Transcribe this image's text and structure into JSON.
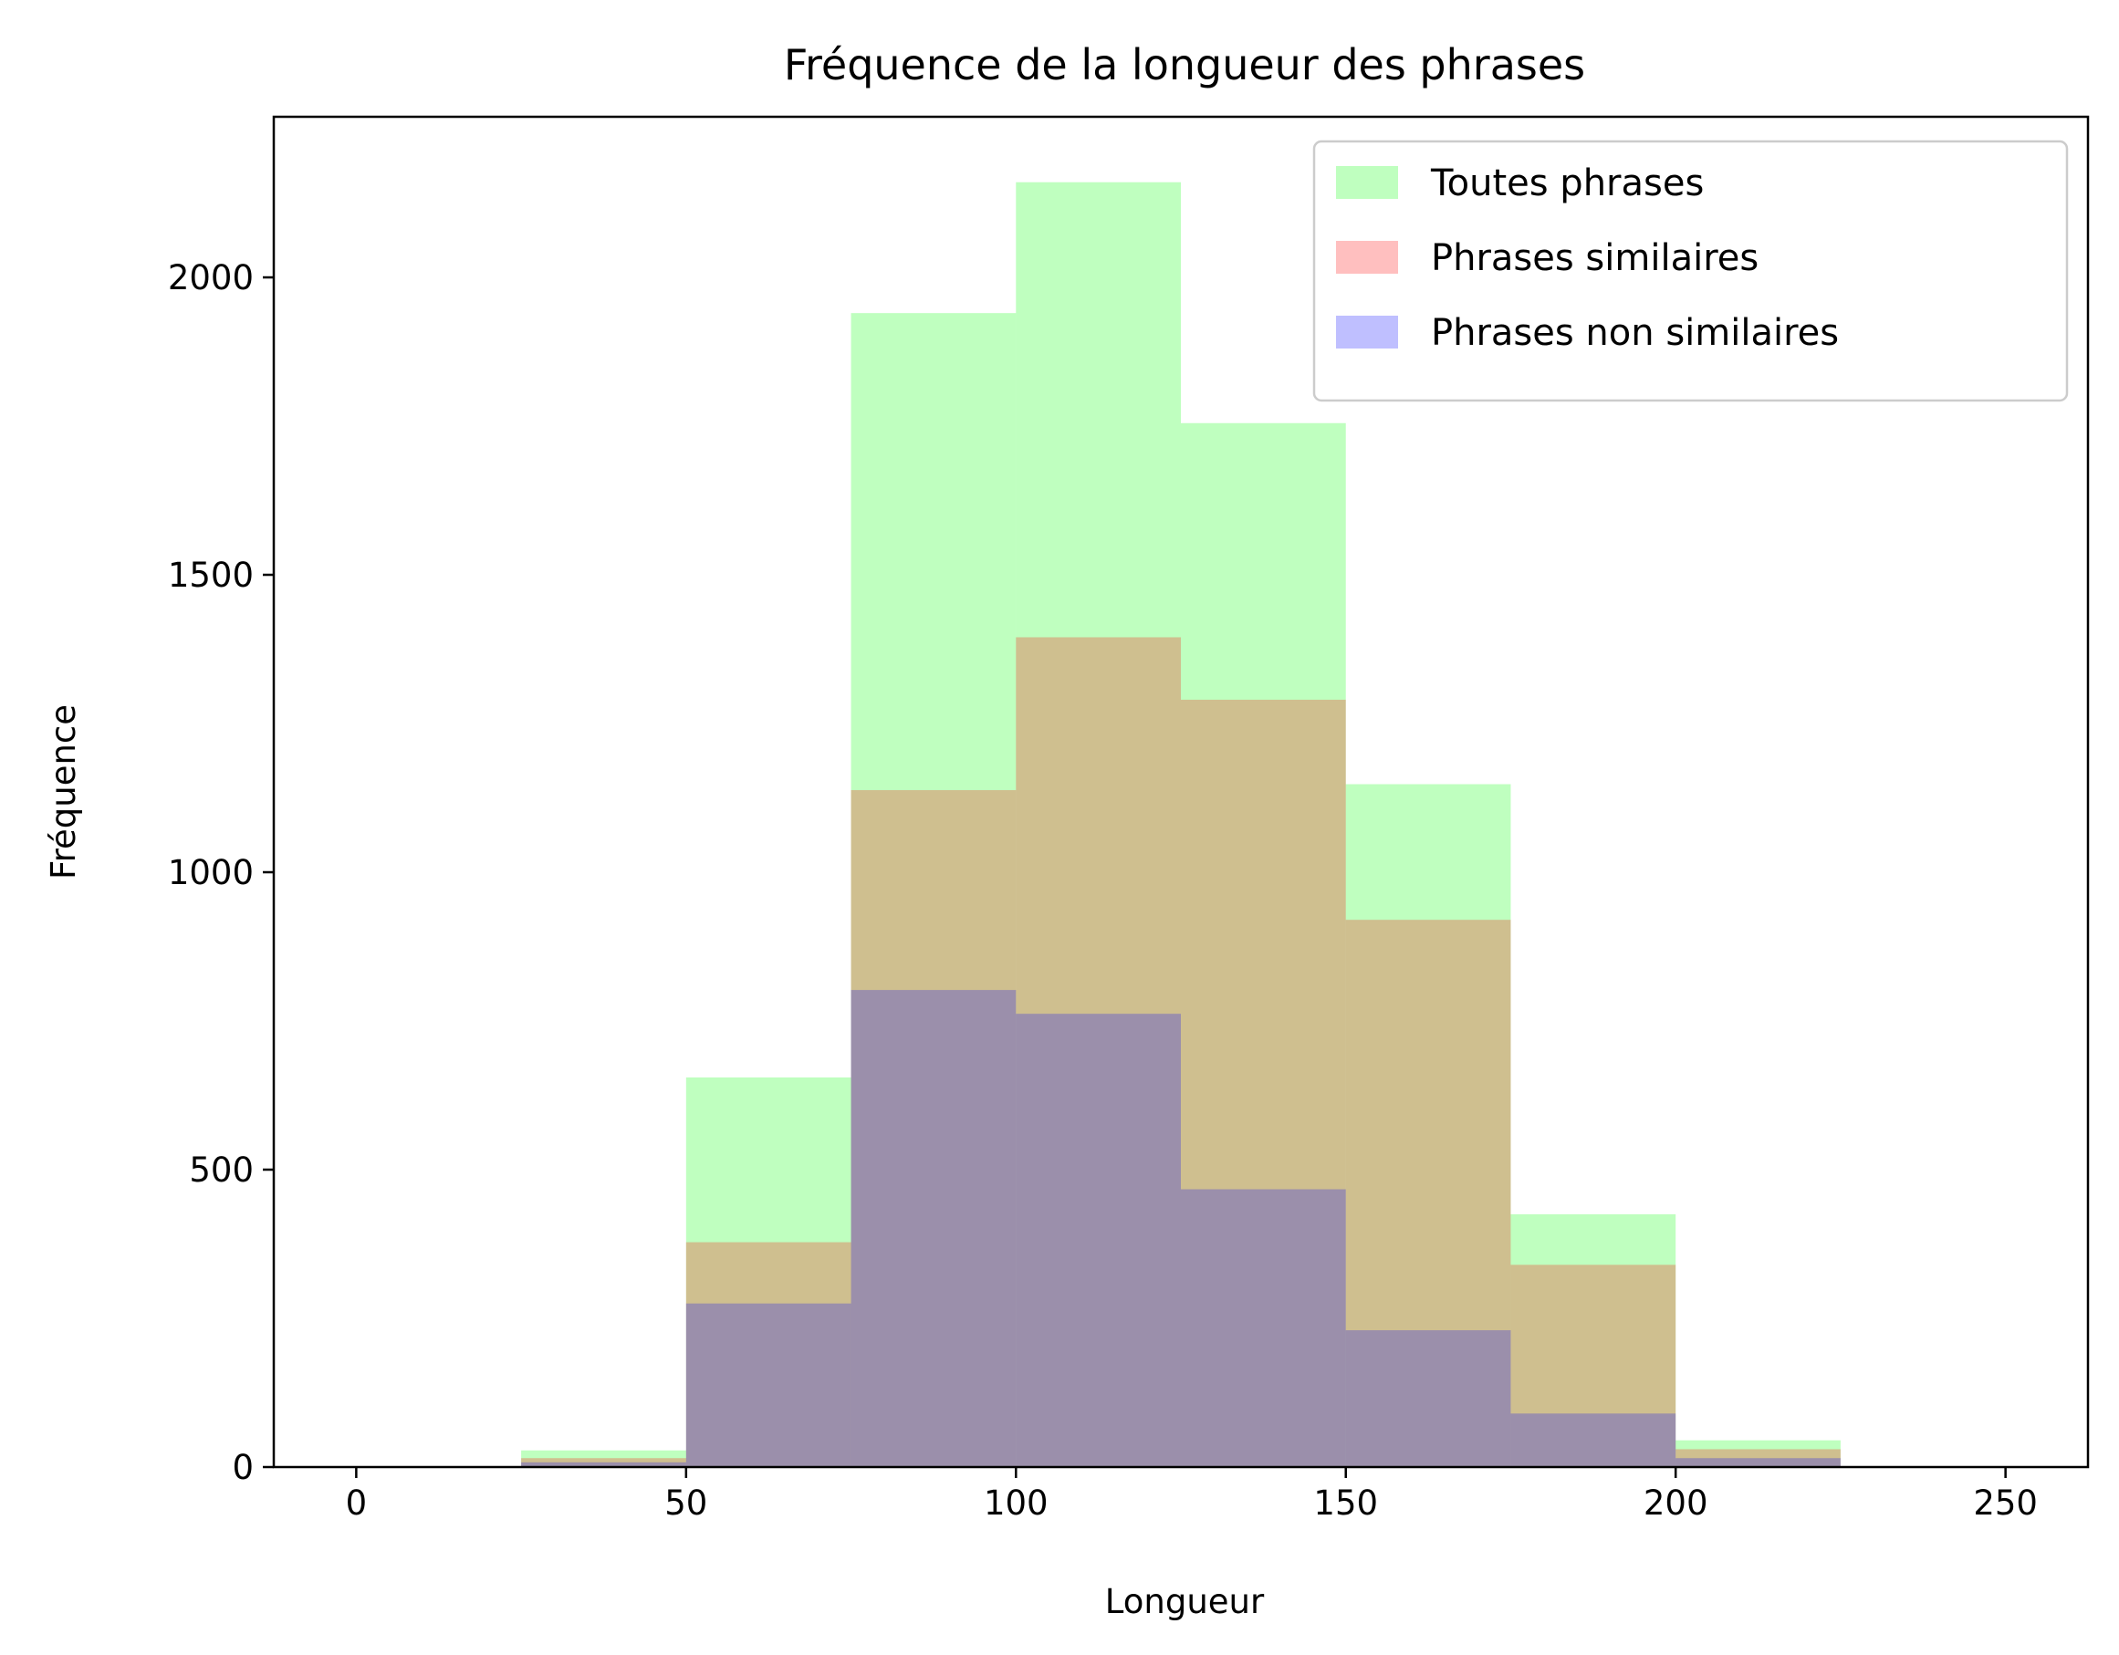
{
  "chart_data": {
    "type": "bar",
    "title": "Fréquence de la longueur des phrases",
    "xlabel": "Longueur",
    "ylabel": "Fréquence",
    "xlim": [
      -12.5,
      262.5
    ],
    "ylim": [
      0,
      2270
    ],
    "x_ticks": [
      0,
      50,
      100,
      150,
      200,
      250
    ],
    "y_ticks": [
      0,
      500,
      1000,
      1500,
      2000
    ],
    "bin_edges": [
      0,
      25,
      50,
      75,
      100,
      125,
      150,
      175,
      200,
      225,
      250
    ],
    "legend_position": "top-right",
    "grid": false,
    "series": [
      {
        "name": "Toutes phrases",
        "color": "#00ff00",
        "alpha": 0.25,
        "values": [
          0,
          28,
          655,
          1940,
          2160,
          1755,
          1148,
          425,
          45,
          0
        ]
      },
      {
        "name": "Phrases similaires",
        "color": "#ff0000",
        "alpha": 0.25,
        "values": [
          0,
          15,
          378,
          1138,
          1395,
          1290,
          920,
          340,
          30,
          0
        ]
      },
      {
        "name": "Phrases non similaires",
        "color": "#0000ff",
        "alpha": 0.25,
        "values": [
          0,
          8,
          275,
          802,
          762,
          467,
          230,
          90,
          15,
          0
        ]
      }
    ]
  }
}
